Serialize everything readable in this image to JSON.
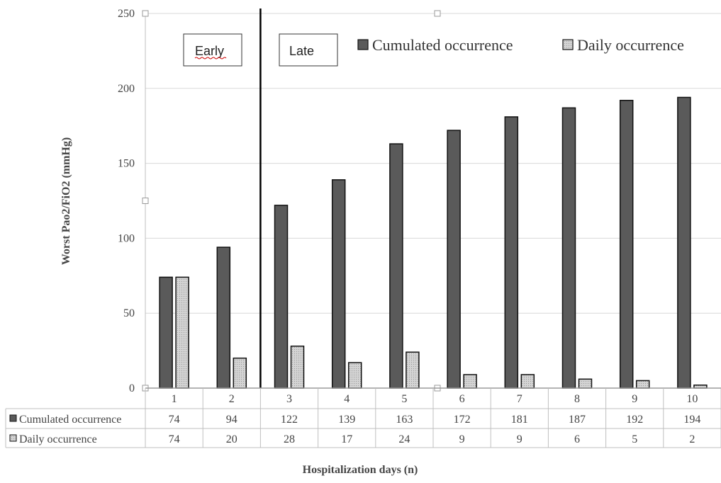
{
  "chart_data": {
    "type": "bar",
    "categories": [
      "1",
      "2",
      "3",
      "4",
      "5",
      "6",
      "7",
      "8",
      "9",
      "10"
    ],
    "series": [
      {
        "name": "Cumulated occurrence",
        "values": [
          74,
          94,
          122,
          139,
          163,
          172,
          181,
          187,
          192,
          194
        ],
        "color": "#5a5a5a"
      },
      {
        "name": "Daily occurrence",
        "values": [
          74,
          20,
          28,
          17,
          24,
          9,
          9,
          6,
          5,
          2
        ],
        "color": "#d4d4d4"
      }
    ],
    "ylim": [
      0,
      250
    ],
    "yticks": [
      0,
      50,
      100,
      150,
      200,
      250
    ],
    "ylabel": "Worst Pao2/FiO2 (mmHg)",
    "xlabel": "Hospitalization days (n)",
    "grid": true,
    "legend": "top-right",
    "annotations": [
      {
        "text": "Early",
        "category_index": 0
      },
      {
        "text": "Late",
        "category_index": 2
      }
    ],
    "separator_between": [
      1,
      2
    ],
    "data_table": true
  }
}
